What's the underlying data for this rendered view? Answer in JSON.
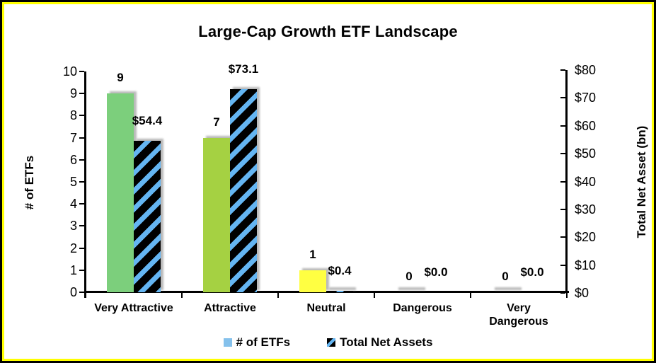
{
  "chart_data": {
    "type": "bar",
    "title": "Large-Cap Growth ETF Landscape",
    "categories": [
      {
        "name": "Very Attractive",
        "display": "Very Attractive"
      },
      {
        "name": "Attractive",
        "display": "Attractive"
      },
      {
        "name": "Neutral",
        "display": "Neutral"
      },
      {
        "name": "Dangerous",
        "display": "Dangerous"
      },
      {
        "name": "Very Dangerous",
        "display": "Very\nDangerous"
      }
    ],
    "series": [
      {
        "name": "# of ETFs",
        "axis": "left",
        "values": [
          9,
          7,
          1,
          0,
          0
        ],
        "data_labels": [
          "9",
          "7",
          "1",
          "0",
          "0"
        ],
        "bar_colors": [
          "#7CCF7C",
          "#A5D142",
          "#FFFF42",
          "#FFFF42",
          "#FFFF42"
        ],
        "legend_color": "#85C1EC"
      },
      {
        "name": "Total Net Assets",
        "axis": "right",
        "values": [
          54.4,
          73.1,
          0.4,
          0.0,
          0.0
        ],
        "data_labels": [
          "$54.4",
          "$73.1",
          "$0.4",
          "$0.0",
          "$0.0"
        ],
        "pattern": {
          "background": "#000000",
          "stripe": "#64B5F2",
          "direction": "diagonal-up"
        }
      }
    ],
    "left_axis": {
      "title": "# of ETFs",
      "min": 0,
      "max": 10,
      "ticks": [
        "10",
        "9",
        "8",
        "7",
        "6",
        "5",
        "4",
        "3",
        "2",
        "1",
        "0"
      ]
    },
    "right_axis": {
      "title": "Total Net Asset (bn)",
      "min": 0,
      "max": 80,
      "ticks": [
        "$80",
        "$70",
        "$60",
        "$50",
        "$40",
        "$30",
        "$20",
        "$10",
        "$0"
      ]
    },
    "legend_position": "bottom",
    "grid": false,
    "frame_border_colors": {
      "outer": "#000000",
      "inner": "#FFFF00"
    },
    "shadow_color": "#b2b2b2"
  }
}
